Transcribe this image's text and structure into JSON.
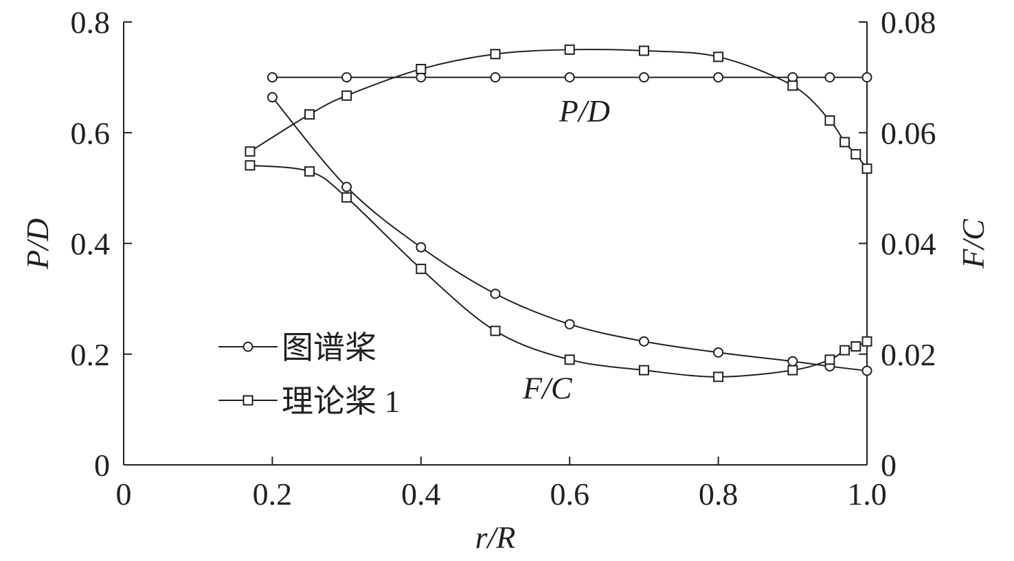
{
  "chart_data": {
    "type": "line",
    "x_axis": {
      "label": "r/R",
      "range": [
        0,
        1.0
      ],
      "ticks": [
        "0",
        "0.2",
        "0.4",
        "0.6",
        "0.8",
        "1.0"
      ]
    },
    "y_left": {
      "label": "P/D",
      "range": [
        0,
        0.8
      ],
      "ticks": [
        "0",
        "0.2",
        "0.4",
        "0.6",
        "0.8"
      ]
    },
    "y_right": {
      "label": "F/C",
      "range": [
        0,
        0.08
      ],
      "ticks": [
        "0",
        "0.02",
        "0.04",
        "0.06",
        "0.08"
      ]
    },
    "annotations": [
      {
        "text": "P/D",
        "x": 0.62,
        "y": 0.62
      },
      {
        "text": "F/C",
        "x": 0.57,
        "y": 0.12
      }
    ],
    "legend": {
      "placement": "bottom-left",
      "entries": [
        {
          "label": "图谱桨",
          "marker": "circle"
        },
        {
          "label": "理论桨 1",
          "marker": "square"
        }
      ]
    },
    "series": [
      {
        "name": "图谱桨",
        "quantity": "P/D",
        "axis": "left",
        "marker": "circle",
        "x": [
          0.2,
          0.3,
          0.4,
          0.5,
          0.6,
          0.7,
          0.8,
          0.9,
          0.95,
          1.0
        ],
        "y": [
          0.7,
          0.7,
          0.7,
          0.7,
          0.7,
          0.7,
          0.7,
          0.7,
          0.7,
          0.7
        ]
      },
      {
        "name": "理论桨 1",
        "quantity": "P/D",
        "axis": "left",
        "marker": "square",
        "x": [
          0.17,
          0.25,
          0.3,
          0.4,
          0.5,
          0.6,
          0.7,
          0.8,
          0.9,
          0.95,
          0.97,
          0.985,
          1.0
        ],
        "y": [
          0.566,
          0.633,
          0.667,
          0.715,
          0.742,
          0.75,
          0.748,
          0.737,
          0.685,
          0.622,
          0.583,
          0.561,
          0.535
        ]
      },
      {
        "name": "图谱桨",
        "quantity": "F/C",
        "axis": "right",
        "marker": "circle",
        "x": [
          0.2,
          0.3,
          0.4,
          0.5,
          0.6,
          0.7,
          0.8,
          0.9,
          0.95,
          1.0
        ],
        "y": [
          0.0664,
          0.0502,
          0.0393,
          0.0309,
          0.0254,
          0.0223,
          0.0203,
          0.0187,
          0.0178,
          0.017
        ]
      },
      {
        "name": "理论桨 1",
        "quantity": "F/C",
        "axis": "right",
        "marker": "square",
        "x": [
          0.17,
          0.25,
          0.3,
          0.4,
          0.5,
          0.6,
          0.7,
          0.8,
          0.9,
          0.95,
          0.97,
          0.985,
          1.0
        ],
        "y": [
          0.0541,
          0.053,
          0.0483,
          0.0354,
          0.0242,
          0.019,
          0.0171,
          0.0159,
          0.0171,
          0.019,
          0.0207,
          0.0214,
          0.0223
        ]
      }
    ]
  }
}
